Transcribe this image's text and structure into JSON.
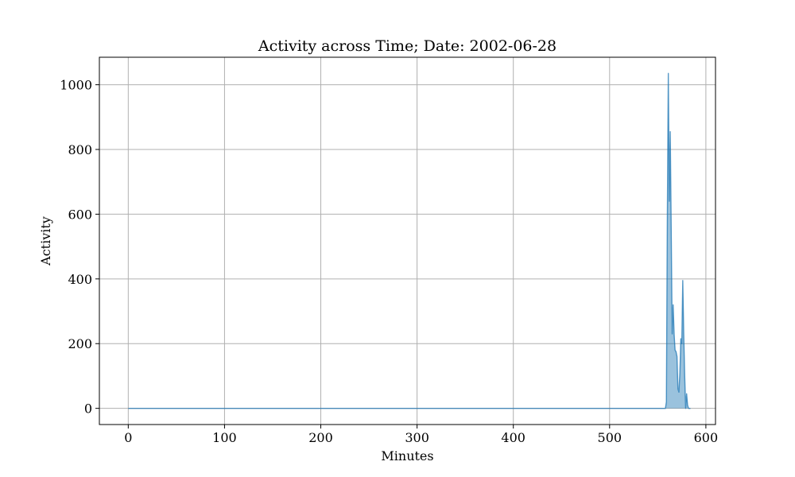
{
  "chart_data": {
    "type": "area",
    "title": "Activity across Time; Date: 2002-06-28",
    "xlabel": "Minutes",
    "ylabel": "Activity",
    "xlim": [
      -30,
      610
    ],
    "ylim": [
      -50,
      1085
    ],
    "grid": true,
    "x_ticks": [
      0,
      100,
      200,
      300,
      400,
      500,
      600
    ],
    "y_ticks": [
      0,
      200,
      400,
      600,
      800,
      1000
    ],
    "line_color": "#1f77b4",
    "fill_color": "#1f77b4",
    "series": [
      {
        "x": [
          0,
          558,
          559,
          560,
          561,
          562,
          563,
          564,
          565,
          566,
          567,
          568,
          569,
          570,
          571,
          572,
          573,
          574,
          575,
          576,
          577,
          578,
          579,
          580,
          581,
          582,
          583,
          584
        ],
        "y": [
          0,
          0,
          20,
          600,
          1035,
          640,
          855,
          550,
          230,
          320,
          230,
          180,
          175,
          160,
          60,
          50,
          110,
          215,
          200,
          395,
          230,
          100,
          0,
          45,
          10,
          0,
          0,
          0
        ]
      }
    ]
  }
}
